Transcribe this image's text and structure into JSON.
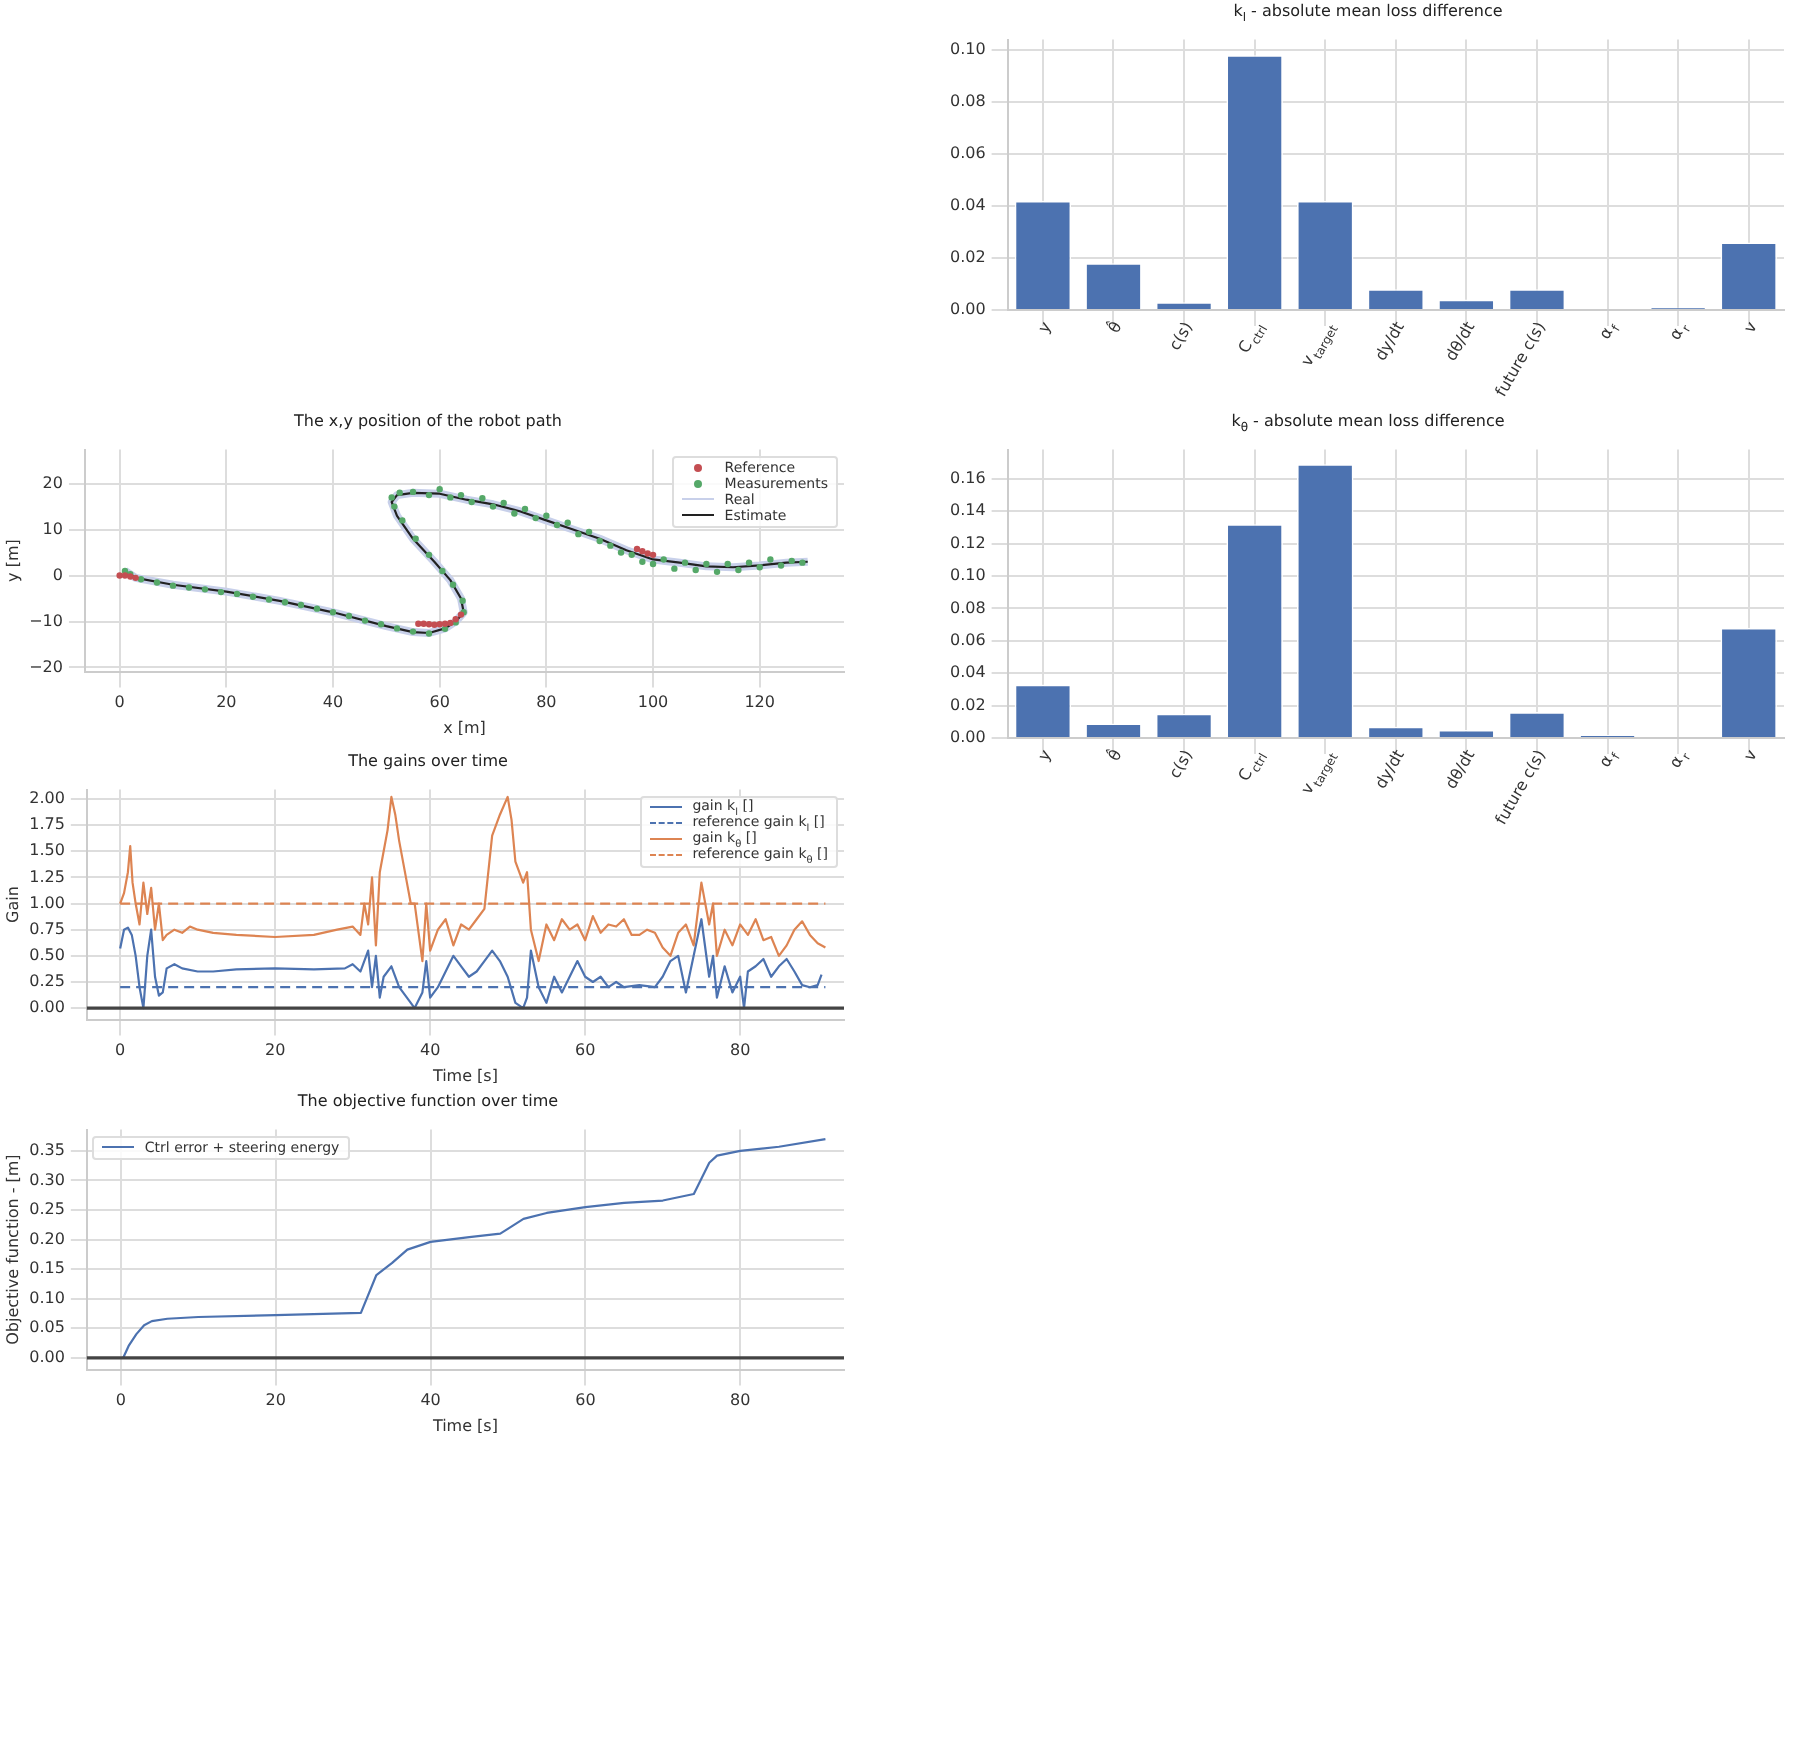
{
  "chart_data": [
    {
      "type": "bar",
      "title": "k$_{l}$ - absolute mean loss difference",
      "categories": [
        "y",
        "θ̂",
        "c(s)",
        "C$_{ctrl}$",
        "v$_{target}$",
        "dy/dt",
        "dθ/dt",
        "future c(s)",
        "α$_{f}$",
        "α$_{r}$",
        "v"
      ],
      "values": [
        0.042,
        0.018,
        0.003,
        0.098,
        0.042,
        0.008,
        0.004,
        0.008,
        0,
        0.001,
        0.026
      ],
      "color": "#4c72b0",
      "ylim": [
        0,
        0.104
      ],
      "yticks": [
        {
          "value": 0,
          "label": "0.00"
        },
        {
          "value": 0.02,
          "label": "0.02"
        },
        {
          "value": 0.04,
          "label": "0.04"
        },
        {
          "value": 0.06,
          "label": "0.06"
        },
        {
          "value": 0.08,
          "label": "0.08"
        },
        {
          "value": 0.1,
          "label": "0.10"
        }
      ],
      "grid": true
    },
    {
      "type": "bar",
      "title": "k$_{θ}$ - absolute mean loss difference",
      "categories": [
        "y",
        "θ̂",
        "c(s)",
        "C$_{ctrl}$",
        "v$_{target}$",
        "dy/dt",
        "dθ/dt",
        "future c(s)",
        "α$_{f}$",
        "α$_{r}$",
        "v"
      ],
      "values": [
        0.033,
        0.009,
        0.015,
        0.132,
        0.169,
        0.007,
        0.005,
        0.016,
        0.002,
        0,
        0.068
      ],
      "color": "#4c72b0",
      "ylim": [
        0,
        0.178
      ],
      "yticks": [
        {
          "value": 0,
          "label": "0.00"
        },
        {
          "value": 0.02,
          "label": "0.02"
        },
        {
          "value": 0.04,
          "label": "0.04"
        },
        {
          "value": 0.06,
          "label": "0.06"
        },
        {
          "value": 0.08,
          "label": "0.08"
        },
        {
          "value": 0.1,
          "label": "0.10"
        },
        {
          "value": 0.12,
          "label": "0.12"
        },
        {
          "value": 0.14,
          "label": "0.14"
        },
        {
          "value": 0.16,
          "label": "0.16"
        }
      ],
      "grid": true
    },
    {
      "type": "line",
      "title": "The x,y position of the robot path",
      "xlabel": "x [m]",
      "ylabel": "y [m]",
      "xlim": [
        -6.5,
        135.8
      ],
      "ylim": [
        -20.9,
        27.4
      ],
      "xticks": [
        0,
        20,
        40,
        60,
        80,
        100,
        120
      ],
      "yticks": [
        {
          "value": -20,
          "label": "−20"
        },
        {
          "value": -10,
          "label": "−10"
        },
        0,
        10,
        20
      ],
      "grid": true,
      "legend": "top right",
      "series": [
        {
          "name": "Reference",
          "type": "scatter",
          "marker": "circle",
          "color": "#c44e52",
          "x": [
            0,
            1,
            2,
            3,
            56,
            57,
            58,
            59,
            60,
            61,
            62,
            63,
            64,
            97,
            98,
            99,
            100
          ],
          "values": [
            0,
            0,
            -0.2,
            -0.5,
            -10.5,
            -10.5,
            -10.6,
            -10.7,
            -10.6,
            -10.5,
            -10.3,
            -9.5,
            -8.5,
            5.8,
            5.3,
            4.8,
            4.5
          ]
        },
        {
          "name": "Measurements",
          "type": "scatter",
          "marker": "circle",
          "color": "#55a868",
          "x": [
            1,
            2,
            4,
            7,
            10,
            13,
            16,
            19,
            22,
            25,
            28,
            31,
            34,
            37,
            40,
            43,
            46,
            49,
            52,
            55,
            58,
            61,
            63,
            64.5,
            64.3,
            62.5,
            60.5,
            58,
            55.5,
            53,
            51.5,
            51,
            52.5,
            55,
            58,
            60,
            62,
            64,
            66,
            68,
            70,
            72,
            74,
            76,
            78,
            80,
            82,
            84,
            86,
            88,
            90,
            92,
            94,
            96,
            98,
            100,
            102,
            104,
            106,
            108,
            110,
            112,
            114,
            116,
            118,
            120,
            122,
            124,
            126,
            128
          ],
          "values": [
            1,
            0.3,
            -0.8,
            -1.5,
            -2.2,
            -2.6,
            -3,
            -3.6,
            -4,
            -4.6,
            -5.2,
            -5.8,
            -6.4,
            -7.2,
            -8,
            -8.8,
            -9.8,
            -10.6,
            -11.5,
            -12.2,
            -12.6,
            -11.6,
            -10.2,
            -8,
            -5.5,
            -2,
            1,
            4.5,
            8,
            12,
            15,
            17,
            18,
            18.2,
            17.5,
            18.8,
            17,
            17.5,
            16,
            16.8,
            15,
            15.8,
            13.5,
            14.5,
            12.5,
            13,
            11,
            11.5,
            9,
            9.5,
            7.5,
            6.5,
            5,
            4.5,
            3,
            2.5,
            3.5,
            1.5,
            2.8,
            1.2,
            2.5,
            0.8,
            2.5,
            1.2,
            2.8,
            1.8,
            3.5,
            2.2,
            3.2,
            2.8
          ]
        },
        {
          "name": "Real",
          "type": "line",
          "color": "#c8d0ea",
          "x": [
            1,
            3,
            10,
            20,
            30,
            40,
            50,
            55,
            58,
            61,
            63,
            64.5,
            64,
            62,
            59,
            55,
            52,
            51,
            52,
            55,
            60,
            65,
            70,
            75,
            80,
            85,
            90,
            95,
            100,
            105,
            110,
            115,
            120,
            125,
            129
          ],
          "values": [
            1,
            -0.5,
            -2,
            -3.5,
            -5.5,
            -8,
            -11,
            -12.3,
            -12.5,
            -11.5,
            -10,
            -8,
            -5,
            -1,
            3,
            8,
            13,
            16,
            17.5,
            18,
            17.8,
            16.5,
            15.5,
            14,
            12,
            10,
            8,
            5.5,
            3.5,
            2.8,
            2,
            1.8,
            2.2,
            2.8,
            3
          ]
        },
        {
          "name": "Estimate",
          "type": "line",
          "color": "#222222",
          "x": [
            1,
            3,
            10,
            20,
            30,
            40,
            50,
            55,
            58,
            61,
            63,
            64.5,
            64,
            62,
            59,
            55,
            52,
            51,
            52,
            55,
            60,
            65,
            70,
            75,
            80,
            85,
            90,
            95,
            100,
            105,
            110,
            115,
            120,
            125,
            129
          ],
          "values": [
            1,
            -0.5,
            -2,
            -3.5,
            -5.5,
            -8,
            -11,
            -12.3,
            -12.5,
            -11.5,
            -10,
            -8,
            -5,
            -1,
            3,
            8,
            13,
            16,
            17.5,
            18,
            17.8,
            16.5,
            15.5,
            14,
            12,
            10,
            8,
            5.5,
            3.5,
            2.8,
            2,
            1.8,
            2.2,
            2.8,
            3
          ]
        }
      ]
    },
    {
      "type": "line",
      "title": "The gains over time",
      "xlabel": "Time [s]",
      "ylabel": "Gain",
      "xlim": [
        -4.3,
        93.4
      ],
      "ylim": [
        -0.11,
        2.09
      ],
      "xticks": [
        0,
        20,
        40,
        60,
        80
      ],
      "yticks": [
        {
          "value": 0,
          "label": "0.00"
        },
        {
          "value": 0.25,
          "label": "0.25"
        },
        {
          "value": 0.5,
          "label": "0.50"
        },
        {
          "value": 0.75,
          "label": "0.75"
        },
        {
          "value": 1,
          "label": "1.00"
        },
        {
          "value": 1.25,
          "label": "1.25"
        },
        {
          "value": 1.5,
          "label": "1.50"
        },
        {
          "value": 1.75,
          "label": "1.75"
        },
        {
          "value": 2,
          "label": "2.00"
        }
      ],
      "grid": true,
      "legend": "top right",
      "ref_lines": [
        {
          "axis": "y",
          "value": 0,
          "color": "#444444"
        }
      ],
      "series": [
        {
          "name": "gain k$_{l}$ []",
          "color": "#4c72b0",
          "line_style": "solid",
          "x": [
            0,
            0.5,
            1,
            1.5,
            2,
            2.5,
            3,
            3.5,
            4,
            4.5,
            5,
            5.5,
            6,
            7,
            8,
            10,
            12,
            15,
            20,
            25,
            29,
            30,
            31,
            32,
            32.5,
            33,
            33.5,
            34,
            35,
            36,
            37,
            38,
            39,
            39.5,
            40,
            41,
            42,
            43,
            44,
            45,
            46,
            47,
            48,
            49,
            50,
            51,
            52,
            52.5,
            53,
            54,
            55,
            56,
            57,
            58,
            59,
            60,
            61,
            62,
            63,
            64,
            65,
            67,
            69,
            70,
            71,
            72,
            73,
            74,
            75,
            76,
            76.5,
            77,
            78,
            79,
            80,
            80.5,
            81,
            82,
            83,
            84,
            85,
            86,
            87,
            88,
            89,
            90,
            90.5
          ],
          "values": [
            0.57,
            0.75,
            0.77,
            0.7,
            0.5,
            0.2,
            0,
            0.5,
            0.75,
            0.3,
            0.12,
            0.15,
            0.38,
            0.42,
            0.38,
            0.35,
            0.35,
            0.37,
            0.38,
            0.37,
            0.38,
            0.42,
            0.35,
            0.55,
            0.2,
            0.5,
            0.1,
            0.3,
            0.4,
            0.2,
            0.1,
            0,
            0.15,
            0.45,
            0.1,
            0.2,
            0.35,
            0.5,
            0.4,
            0.3,
            0.35,
            0.45,
            0.55,
            0.45,
            0.3,
            0.05,
            0,
            0.1,
            0.55,
            0.2,
            0.05,
            0.3,
            0.15,
            0.3,
            0.45,
            0.3,
            0.25,
            0.3,
            0.2,
            0.25,
            0.2,
            0.22,
            0.2,
            0.3,
            0.45,
            0.5,
            0.15,
            0.5,
            0.85,
            0.3,
            0.5,
            0.1,
            0.4,
            0.15,
            0.3,
            0,
            0.35,
            0.4,
            0.47,
            0.3,
            0.4,
            0.47,
            0.35,
            0.22,
            0.2,
            0.22,
            0.32
          ]
        },
        {
          "name": "reference gain k$_{l}$ []",
          "color": "#4c72b0",
          "line_style": "dashed",
          "x": [
            0,
            91
          ],
          "values": [
            0.2,
            0.2
          ]
        },
        {
          "name": "gain k$_{θ}$ []",
          "color": "#dd8452",
          "line_style": "solid",
          "x": [
            0,
            0.5,
            1,
            1.3,
            1.6,
            2,
            2.5,
            3,
            3.5,
            4,
            4.5,
            5,
            5.5,
            6,
            7,
            8,
            9,
            10,
            12,
            15,
            20,
            25,
            28,
            30,
            31,
            31.5,
            32,
            32.5,
            33,
            33.5,
            34,
            34.5,
            35,
            35.5,
            36,
            37,
            37.5,
            38,
            39,
            39.5,
            40,
            41,
            42,
            43,
            44,
            45,
            46,
            47,
            48,
            49,
            50,
            50.5,
            51,
            52,
            52.5,
            53,
            54,
            55,
            56,
            57,
            58,
            59,
            60,
            61,
            62,
            63,
            64,
            65,
            66,
            67,
            68,
            69,
            70,
            71,
            72,
            73,
            74,
            75,
            76,
            76.5,
            77,
            78,
            79,
            80,
            81,
            82,
            83,
            84,
            85,
            86,
            87,
            88,
            89,
            90,
            91
          ],
          "values": [
            1,
            1.1,
            1.3,
            1.55,
            1.2,
            1,
            0.8,
            1.2,
            0.9,
            1.15,
            0.75,
            1,
            0.65,
            0.7,
            0.75,
            0.72,
            0.78,
            0.75,
            0.72,
            0.7,
            0.68,
            0.7,
            0.75,
            0.78,
            0.7,
            1,
            0.8,
            1.25,
            0.6,
            1.3,
            1.5,
            1.7,
            2.02,
            1.85,
            1.6,
            1.2,
            1,
            1,
            0.45,
            1,
            0.55,
            0.75,
            0.85,
            0.6,
            0.8,
            0.75,
            0.85,
            0.95,
            1.65,
            1.85,
            2.02,
            1.8,
            1.4,
            1.2,
            1.3,
            0.75,
            0.45,
            0.8,
            0.65,
            0.85,
            0.75,
            0.8,
            0.65,
            0.88,
            0.72,
            0.8,
            0.78,
            0.85,
            0.7,
            0.7,
            0.75,
            0.72,
            0.58,
            0.5,
            0.72,
            0.8,
            0.6,
            1.2,
            0.8,
            1,
            0.5,
            0.75,
            0.6,
            0.8,
            0.7,
            0.85,
            0.65,
            0.68,
            0.5,
            0.6,
            0.75,
            0.83,
            0.7,
            0.62,
            0.58
          ]
        },
        {
          "name": "reference gain k$_{θ}$ []",
          "color": "#dd8452",
          "line_style": "dashed",
          "x": [
            0,
            91
          ],
          "values": [
            1,
            1
          ]
        }
      ]
    },
    {
      "type": "line",
      "title": "The objective function over time",
      "xlabel": "Time [s]",
      "ylabel": "Objective function - [m]",
      "xlim": [
        -4.4,
        93.4
      ],
      "ylim": [
        -0.02,
        0.386
      ],
      "xticks": [
        0,
        20,
        40,
        60,
        80
      ],
      "yticks": [
        {
          "value": 0,
          "label": "0.00"
        },
        {
          "value": 0.05,
          "label": "0.05"
        },
        {
          "value": 0.1,
          "label": "0.10"
        },
        {
          "value": 0.15,
          "label": "0.15"
        },
        {
          "value": 0.2,
          "label": "0.20"
        },
        {
          "value": 0.25,
          "label": "0.25"
        },
        {
          "value": 0.3,
          "label": "0.30"
        },
        {
          "value": 0.35,
          "label": "0.35"
        }
      ],
      "grid": true,
      "legend": "top left",
      "ref_lines": [
        {
          "axis": "y",
          "value": 0,
          "color": "#444444"
        }
      ],
      "series": [
        {
          "name": "Ctrl error + steering energy",
          "color": "#4c72b0",
          "x": [
            0.3,
            1,
            2,
            3,
            4,
            6,
            10,
            20,
            31,
            33,
            35,
            37,
            40,
            45,
            49,
            52,
            55,
            60,
            65,
            70,
            74,
            76,
            77,
            80,
            85,
            91
          ],
          "values": [
            0,
            0.02,
            0.04,
            0.055,
            0.062,
            0.066,
            0.069,
            0.072,
            0.076,
            0.14,
            0.16,
            0.183,
            0.196,
            0.204,
            0.21,
            0.235,
            0.245,
            0.255,
            0.262,
            0.266,
            0.277,
            0.33,
            0.342,
            0.35,
            0.357,
            0.37
          ]
        }
      ]
    }
  ]
}
